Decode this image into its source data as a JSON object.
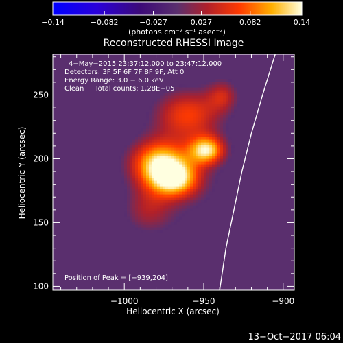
{
  "chart_data": {
    "type": "heatmap",
    "title": "Reconstructed RHESSI Image",
    "xlabel": "Heliocentric X (arcsec)",
    "ylabel": "Heliocentric Y (arcsec)",
    "xlim": [
      -1045,
      -893
    ],
    "ylim": [
      97,
      282
    ],
    "x_ticks": [
      -1000,
      -950,
      -900
    ],
    "x_tick_labels": [
      "−1000",
      "−950",
      "−900"
    ],
    "y_ticks": [
      100,
      150,
      200,
      250
    ],
    "y_tick_labels": [
      "100",
      "150",
      "200",
      "250"
    ],
    "colorbar": {
      "range": [
        -0.14,
        0.14
      ],
      "ticks": [
        -0.14,
        -0.082,
        -0.027,
        0.027,
        0.082,
        0.14
      ],
      "tick_labels": [
        "−0.14",
        "−0.082",
        "−0.027",
        "0.027",
        "0.082",
        "0.14"
      ],
      "unit_label": "(photons cm⁻² s⁻¹ asec⁻²)"
    },
    "annotations": [
      "4−May−2015 23:37:12.000 to 23:47:12.000",
      "Detectors: 3F 5F 6F 7F 8F 9F, Att 0",
      "Energy Range: 3.0 − 6.0 keV",
      "Clean     Total counts: 1.28E+05"
    ],
    "peak_label": "Position of Peak = [−939,204]",
    "peak": {
      "x": -939,
      "y": 204
    },
    "limb": [
      [
        -940,
        97
      ],
      [
        -936,
        130
      ],
      [
        -931,
        160
      ],
      [
        -926,
        190
      ],
      [
        -920,
        220
      ],
      [
        -913,
        250
      ],
      [
        -905,
        282
      ]
    ],
    "sources": [
      {
        "x": -978,
        "y": 197,
        "sx": 13,
        "sy": 13,
        "amp": 0.14
      },
      {
        "x": -948,
        "y": 207,
        "sx": 8,
        "sy": 8,
        "amp": 0.14
      },
      {
        "x": -968,
        "y": 184,
        "sx": 11,
        "sy": 10,
        "amp": 0.12
      },
      {
        "x": -960,
        "y": 235,
        "sx": 15,
        "sy": 14,
        "amp": 0.092
      },
      {
        "x": -938,
        "y": 250,
        "sx": 7,
        "sy": 9,
        "amp": 0.06
      },
      {
        "x": -985,
        "y": 160,
        "sx": 11,
        "sy": 13,
        "amp": 0.05
      },
      {
        "x": -960,
        "y": 175,
        "sx": 23,
        "sy": 28,
        "amp": 0.02
      }
    ],
    "background": -0.027,
    "grid": false
  },
  "timestamp": "13−Oct−2017 06:04"
}
